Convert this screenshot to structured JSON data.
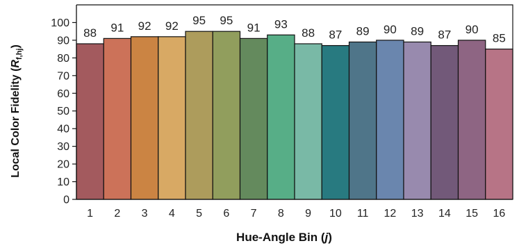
{
  "chart_data": {
    "type": "bar",
    "categories": [
      "1",
      "2",
      "3",
      "4",
      "5",
      "6",
      "7",
      "8",
      "9",
      "10",
      "11",
      "12",
      "13",
      "14",
      "15",
      "16"
    ],
    "values": [
      88,
      91,
      92,
      92,
      95,
      95,
      91,
      93,
      88,
      87,
      89,
      90,
      89,
      87,
      90,
      85
    ],
    "data_labels": [
      "88",
      "91",
      "92",
      "92",
      "95",
      "95",
      "91",
      "93",
      "88",
      "87",
      "89",
      "90",
      "89",
      "87",
      "90",
      "85"
    ],
    "colors": [
      "#a35a5e",
      "#cc7259",
      "#cb8443",
      "#d8a964",
      "#ad9c5c",
      "#919e5d",
      "#648a5d",
      "#57ae87",
      "#79b9a6",
      "#287a80",
      "#4f7589",
      "#6a86ae",
      "#988aae",
      "#725979",
      "#8e6583",
      "#b77486"
    ],
    "xlabel_text": "Hue-Angle Bin (",
    "xlabel_var": "j",
    "xlabel_close": ")",
    "ylabel_text": "Local Color Fidelity (",
    "ylabel_var": "R",
    "ylabel_sub": "f,hj",
    "ylabel_close": ")",
    "ylim": [
      0,
      100
    ],
    "yticks": [
      0,
      10,
      20,
      30,
      40,
      50,
      60,
      70,
      80,
      90,
      100
    ],
    "grid": false,
    "legend": "none"
  }
}
